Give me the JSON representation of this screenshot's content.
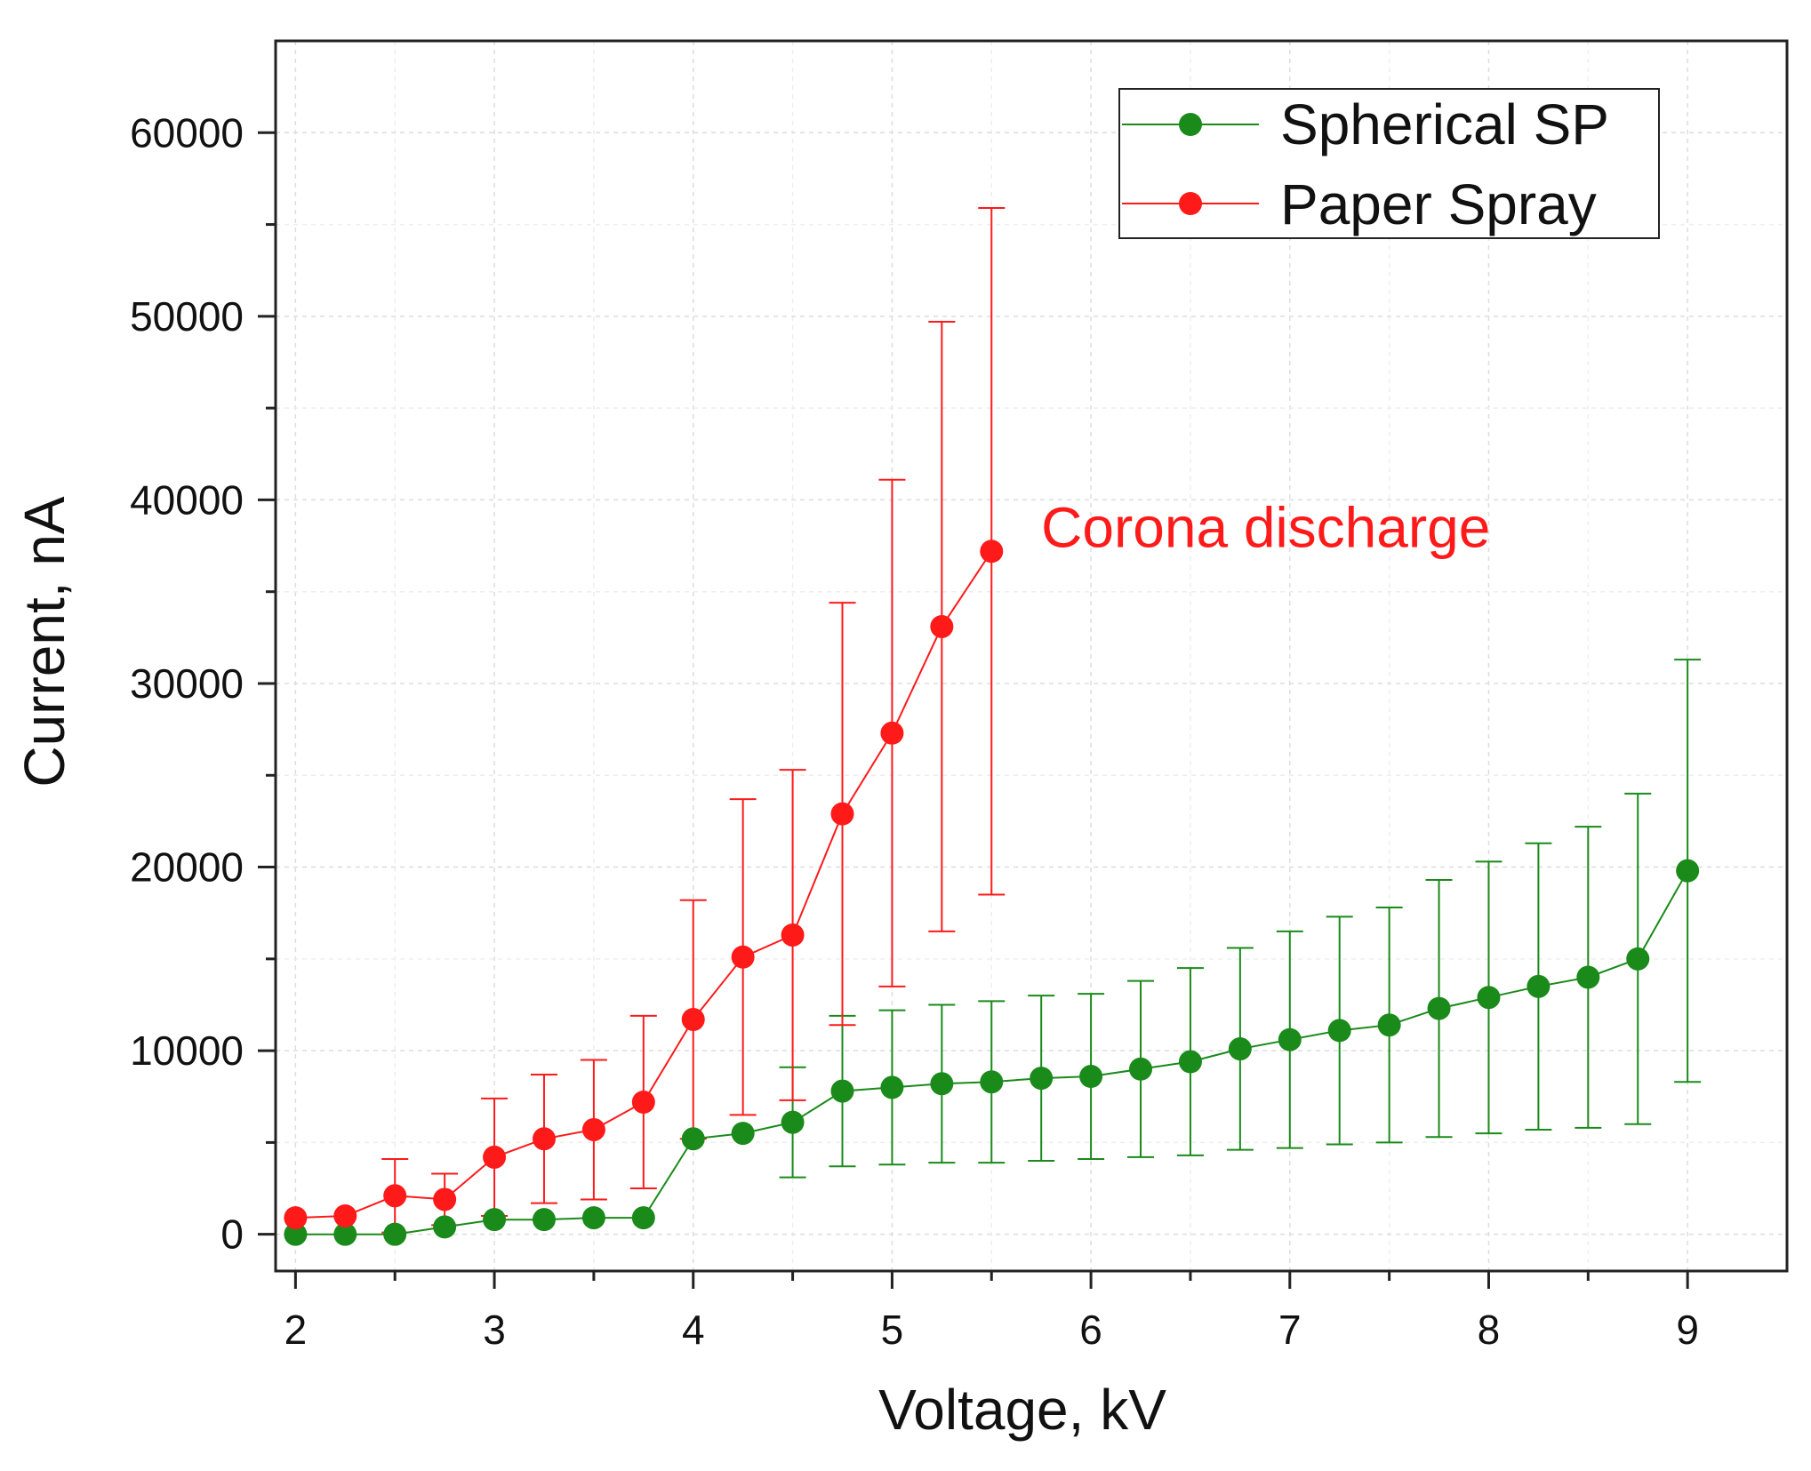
{
  "chart_data": {
    "type": "line",
    "xlabel": "Voltage, kV",
    "ylabel": "Current, nA",
    "xlim": [
      1.9,
      9.5
    ],
    "ylim": [
      -2000,
      65000
    ],
    "xticks": [
      2,
      3,
      4,
      5,
      6,
      7,
      8,
      9
    ],
    "yticks": [
      0,
      10000,
      20000,
      30000,
      40000,
      50000,
      60000
    ],
    "xtick_labels": [
      "2",
      "3",
      "4",
      "5",
      "6",
      "7",
      "8",
      "9"
    ],
    "ytick_labels": [
      "0",
      "10000",
      "20000",
      "30000",
      "40000",
      "50000",
      "60000"
    ],
    "grid": true,
    "legend_position": "top-right",
    "series": [
      {
        "name": "Spherical SP",
        "color": "#1a8a1a",
        "x": [
          2,
          2.25,
          2.5,
          2.75,
          3,
          3.25,
          3.5,
          3.75,
          4,
          4.25,
          4.5,
          4.75,
          5,
          5.25,
          5.5,
          5.75,
          6,
          6.25,
          6.5,
          6.75,
          7,
          7.25,
          7.5,
          7.75,
          8,
          8.25,
          8.5,
          8.75,
          9
        ],
        "y": [
          0,
          0,
          0,
          400,
          800,
          800,
          900,
          900,
          5200,
          5500,
          6100,
          7800,
          8000,
          8200,
          8300,
          8500,
          8600,
          9000,
          9400,
          10100,
          10600,
          11100,
          11400,
          12300,
          12900,
          13500,
          14000,
          15000,
          19800
        ],
        "error": [
          0,
          0,
          0,
          0,
          0,
          0,
          0,
          0,
          0,
          0,
          3000,
          4100,
          4200,
          4300,
          4400,
          4500,
          4500,
          4800,
          5100,
          5500,
          5900,
          6200,
          6400,
          7000,
          7400,
          7800,
          8200,
          9000,
          11500
        ]
      },
      {
        "name": "Paper Spray",
        "color": "#ff1a1a",
        "x": [
          2,
          2.25,
          2.5,
          2.75,
          3,
          3.25,
          3.5,
          3.75,
          4,
          4.25,
          4.5,
          4.75,
          5,
          5.25,
          5.5
        ],
        "y": [
          900,
          1000,
          2100,
          1900,
          4200,
          5200,
          5700,
          7200,
          11700,
          15100,
          16300,
          22900,
          27300,
          33100,
          37200
        ],
        "error": [
          0,
          0,
          2000,
          1400,
          3200,
          3500,
          3800,
          4700,
          6500,
          8600,
          9000,
          11500,
          13800,
          16600,
          18700
        ]
      }
    ],
    "annotations": [
      {
        "text": "Corona discharge",
        "x": 5.75,
        "y": 38500,
        "color": "#ff1a1a"
      }
    ]
  }
}
